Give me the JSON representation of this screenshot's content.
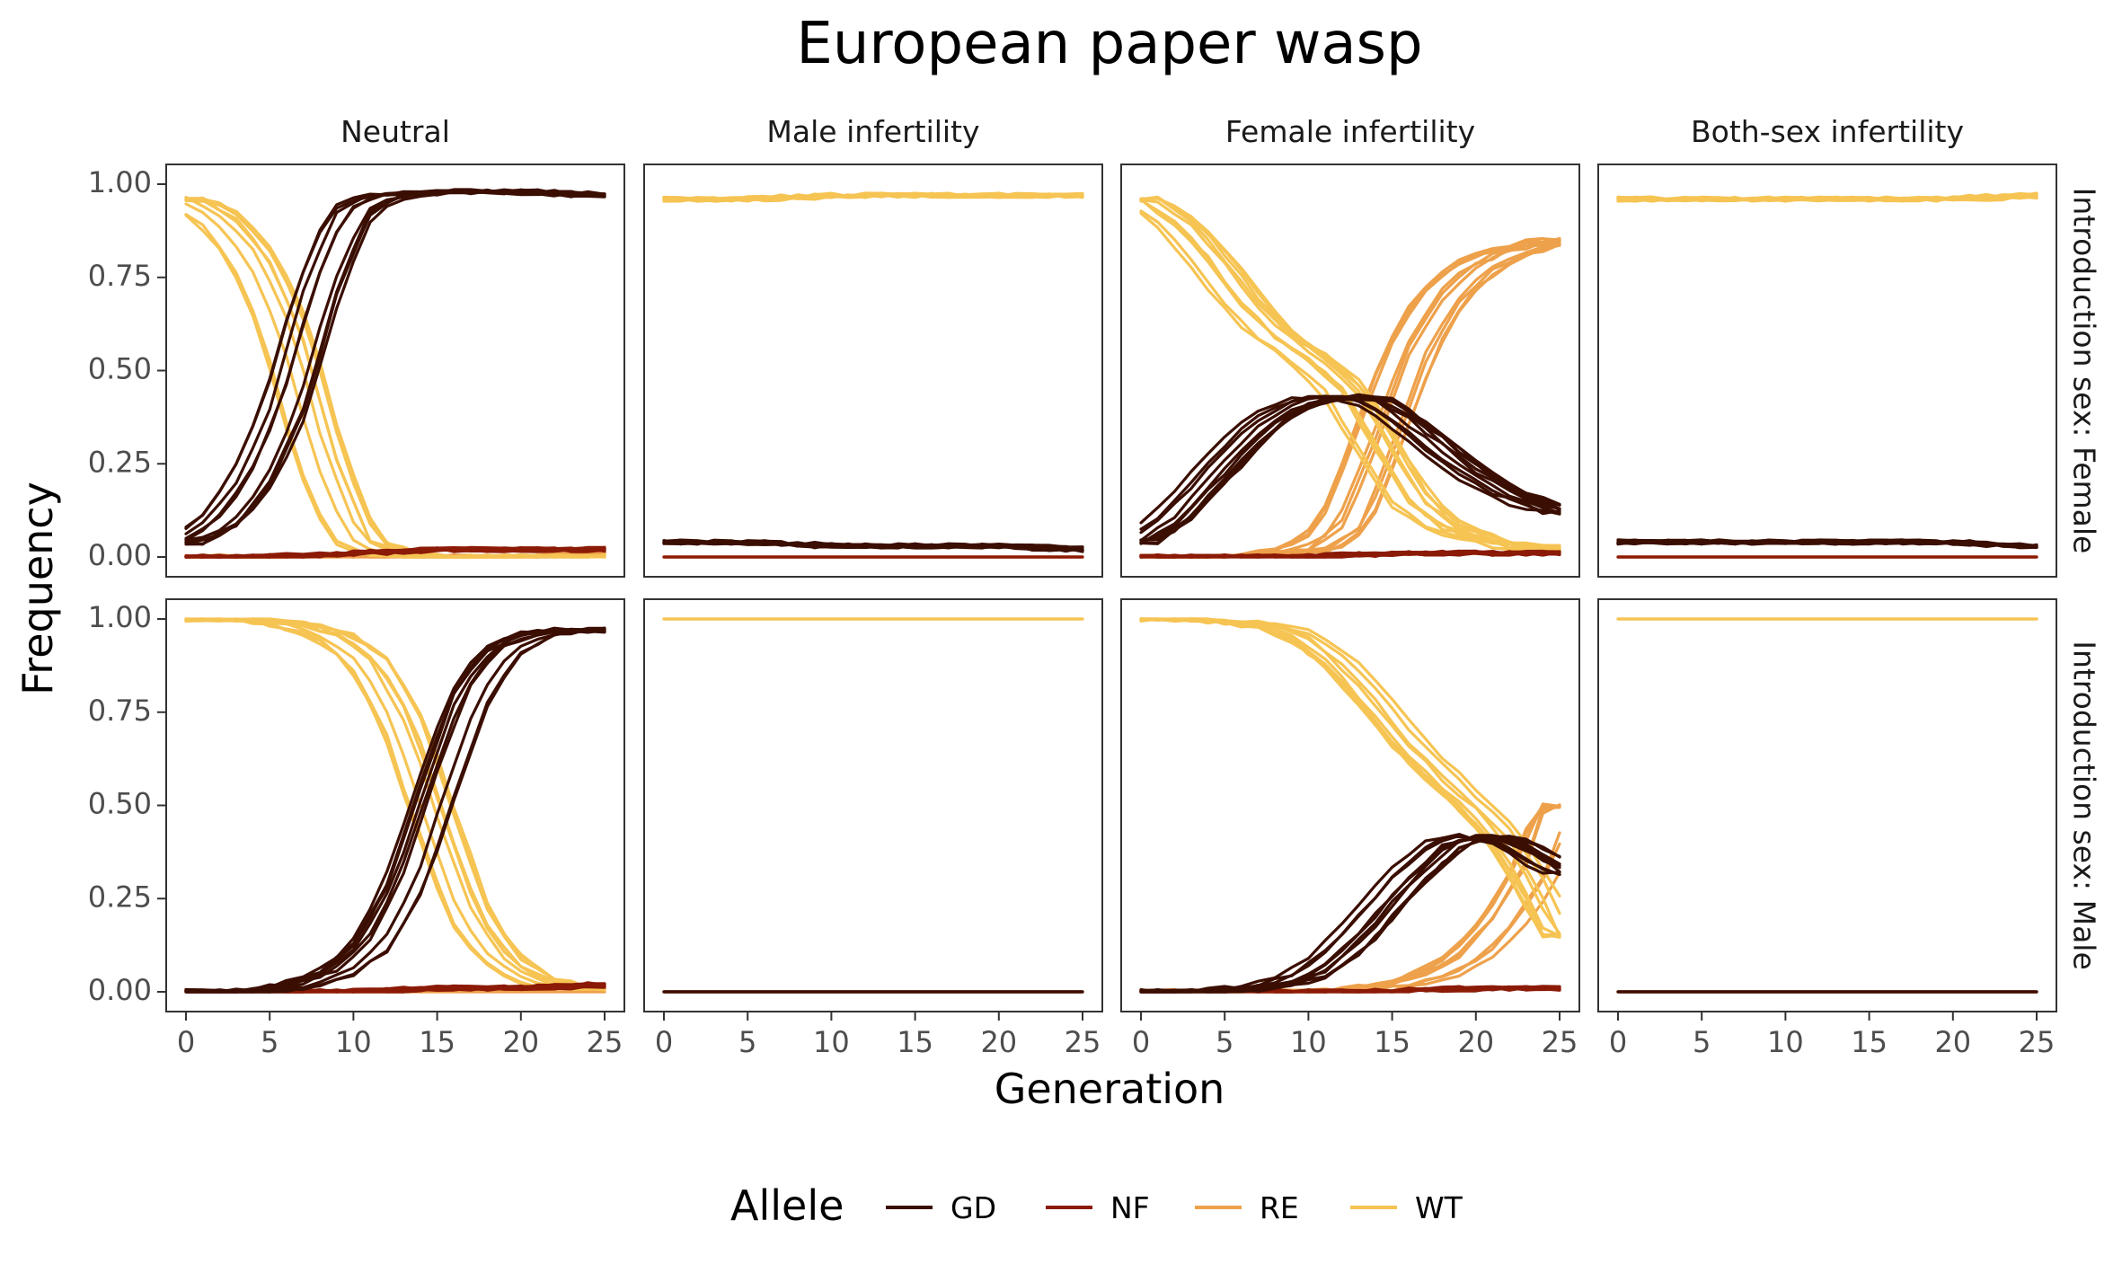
{
  "chart_data": {
    "type": "line",
    "title": "European paper wasp",
    "xlabel": "Generation",
    "ylabel": "Frequency",
    "xlim": [
      0,
      25
    ],
    "ylim": [
      0,
      1
    ],
    "x_ticks": [
      "0",
      "5",
      "10",
      "15",
      "20",
      "25"
    ],
    "y_ticks": [
      "0.00",
      "0.25",
      "0.50",
      "0.75",
      "1.00"
    ],
    "columns": [
      "Neutral",
      "Male infertility",
      "Female infertility",
      "Both-sex infertility"
    ],
    "rows": [
      "Introduction sex: Female",
      "Introduction sex: Male"
    ],
    "grid": false,
    "legend": {
      "title": "Allele",
      "position": "bottom",
      "entries": [
        {
          "key": "GD",
          "label": "GD",
          "color": "#3b0e02"
        },
        {
          "key": "NF",
          "label": "NF",
          "color": "#8b1a06"
        },
        {
          "key": "RE",
          "label": "RE",
          "color": "#eea14b"
        },
        {
          "key": "WT",
          "label": "WT",
          "color": "#f6c453"
        }
      ]
    },
    "replicates_per_allele": 10,
    "panels": [
      {
        "row": 0,
        "col": 0,
        "series": [
          {
            "allele": "GD",
            "x": [
              0,
              2,
              4,
              6,
              8,
              10,
              12,
              15,
              20,
              25
            ],
            "y": [
              0.04,
              0.09,
              0.2,
              0.4,
              0.72,
              0.93,
              0.97,
              0.98,
              0.98,
              0.97
            ]
          },
          {
            "allele": "WT",
            "x": [
              0,
              2,
              4,
              6,
              8,
              10,
              12,
              15,
              20,
              25
            ],
            "y": [
              0.96,
              0.91,
              0.8,
              0.6,
              0.27,
              0.05,
              0.01,
              0.0,
              0.0,
              0.0
            ]
          },
          {
            "allele": "NF",
            "x": [
              0,
              5,
              10,
              15,
              20,
              25
            ],
            "y": [
              0.0,
              0.0,
              0.01,
              0.02,
              0.02,
              0.02
            ]
          },
          {
            "allele": "RE",
            "x": [
              0,
              5,
              10,
              15,
              20,
              25
            ],
            "y": [
              0.0,
              0.0,
              0.0,
              0.0,
              0.0,
              0.01
            ]
          }
        ]
      },
      {
        "row": 0,
        "col": 1,
        "series": [
          {
            "allele": "WT",
            "x": [
              0,
              5,
              10,
              15,
              20,
              25
            ],
            "y": [
              0.96,
              0.96,
              0.97,
              0.97,
              0.97,
              0.97
            ]
          },
          {
            "allele": "GD",
            "x": [
              0,
              5,
              10,
              15,
              20,
              25
            ],
            "y": [
              0.04,
              0.04,
              0.03,
              0.03,
              0.03,
              0.02
            ]
          },
          {
            "allele": "NF",
            "x": [
              0,
              25
            ],
            "y": [
              0.0,
              0.0
            ]
          },
          {
            "allele": "RE",
            "x": [
              0,
              25
            ],
            "y": [
              0.0,
              0.0
            ]
          }
        ]
      },
      {
        "row": 0,
        "col": 2,
        "series": [
          {
            "allele": "GD",
            "x": [
              0,
              2,
              4,
              6,
              8,
              10,
              12,
              14,
              16,
              18,
              20,
              22,
              25
            ],
            "y": [
              0.04,
              0.1,
              0.2,
              0.3,
              0.38,
              0.42,
              0.43,
              0.42,
              0.36,
              0.29,
              0.22,
              0.17,
              0.12
            ]
          },
          {
            "allele": "WT",
            "x": [
              0,
              2,
              4,
              6,
              8,
              10,
              12,
              14,
              16,
              18,
              20,
              22,
              25
            ],
            "y": [
              0.96,
              0.9,
              0.8,
              0.68,
              0.59,
              0.53,
              0.45,
              0.3,
              0.15,
              0.08,
              0.05,
              0.03,
              0.02
            ]
          },
          {
            "allele": "RE",
            "x": [
              0,
              6,
              10,
              12,
              14,
              16,
              18,
              20,
              22,
              25
            ],
            "y": [
              0.0,
              0.0,
              0.02,
              0.08,
              0.3,
              0.55,
              0.7,
              0.78,
              0.82,
              0.85
            ]
          },
          {
            "allele": "NF",
            "x": [
              0,
              10,
              15,
              20,
              25
            ],
            "y": [
              0.0,
              0.0,
              0.01,
              0.01,
              0.01
            ]
          }
        ]
      },
      {
        "row": 0,
        "col": 3,
        "series": [
          {
            "allele": "WT",
            "x": [
              0,
              5,
              10,
              15,
              20,
              25
            ],
            "y": [
              0.96,
              0.96,
              0.96,
              0.96,
              0.96,
              0.97
            ]
          },
          {
            "allele": "GD",
            "x": [
              0,
              5,
              10,
              15,
              20,
              25
            ],
            "y": [
              0.04,
              0.04,
              0.04,
              0.04,
              0.04,
              0.03
            ]
          },
          {
            "allele": "NF",
            "x": [
              0,
              25
            ],
            "y": [
              0.0,
              0.0
            ]
          },
          {
            "allele": "RE",
            "x": [
              0,
              25
            ],
            "y": [
              0.0,
              0.0
            ]
          }
        ]
      },
      {
        "row": 1,
        "col": 0,
        "series": [
          {
            "allele": "GD",
            "x": [
              0,
              4,
              7,
              9,
              11,
              13,
              15,
              17,
              19,
              21,
              23,
              25
            ],
            "y": [
              0.0,
              0.0,
              0.02,
              0.05,
              0.12,
              0.28,
              0.55,
              0.8,
              0.92,
              0.96,
              0.97,
              0.97
            ]
          },
          {
            "allele": "WT",
            "x": [
              0,
              4,
              7,
              9,
              11,
              13,
              15,
              17,
              19,
              21,
              23,
              25
            ],
            "y": [
              1.0,
              1.0,
              0.98,
              0.95,
              0.88,
              0.72,
              0.45,
              0.2,
              0.08,
              0.03,
              0.01,
              0.01
            ]
          },
          {
            "allele": "NF",
            "x": [
              0,
              10,
              15,
              20,
              25
            ],
            "y": [
              0.0,
              0.0,
              0.01,
              0.01,
              0.02
            ]
          },
          {
            "allele": "RE",
            "x": [
              0,
              25
            ],
            "y": [
              0.0,
              0.0
            ]
          }
        ]
      },
      {
        "row": 1,
        "col": 1,
        "series": [
          {
            "allele": "WT",
            "x": [
              0,
              25
            ],
            "y": [
              1.0,
              1.0
            ]
          },
          {
            "allele": "GD",
            "x": [
              0,
              25
            ],
            "y": [
              0.0,
              0.0
            ]
          },
          {
            "allele": "NF",
            "x": [
              0,
              25
            ],
            "y": [
              0.0,
              0.0
            ]
          },
          {
            "allele": "RE",
            "x": [
              0,
              25
            ],
            "y": [
              0.0,
              0.0
            ]
          }
        ]
      },
      {
        "row": 1,
        "col": 2,
        "series": [
          {
            "allele": "GD",
            "x": [
              0,
              4,
              8,
              10,
              12,
              14,
              16,
              18,
              20,
              22,
              24,
              25
            ],
            "y": [
              0.0,
              0.0,
              0.02,
              0.05,
              0.12,
              0.22,
              0.32,
              0.4,
              0.42,
              0.4,
              0.35,
              0.32
            ]
          },
          {
            "allele": "WT",
            "x": [
              0,
              4,
              8,
              10,
              12,
              14,
              16,
              18,
              20,
              22,
              24,
              25
            ],
            "y": [
              1.0,
              1.0,
              0.98,
              0.95,
              0.88,
              0.78,
              0.67,
              0.58,
              0.5,
              0.4,
              0.25,
              0.15
            ]
          },
          {
            "allele": "RE",
            "x": [
              0,
              12,
              14,
              16,
              18,
              20,
              22,
              24,
              25
            ],
            "y": [
              0.0,
              0.0,
              0.01,
              0.02,
              0.05,
              0.1,
              0.2,
              0.35,
              0.5
            ]
          },
          {
            "allele": "NF",
            "x": [
              0,
              15,
              20,
              25
            ],
            "y": [
              0.0,
              0.0,
              0.01,
              0.01
            ]
          }
        ]
      },
      {
        "row": 1,
        "col": 3,
        "series": [
          {
            "allele": "WT",
            "x": [
              0,
              25
            ],
            "y": [
              1.0,
              1.0
            ]
          },
          {
            "allele": "GD",
            "x": [
              0,
              25
            ],
            "y": [
              0.0,
              0.0
            ]
          },
          {
            "allele": "NF",
            "x": [
              0,
              25
            ],
            "y": [
              0.0,
              0.0
            ]
          },
          {
            "allele": "RE",
            "x": [
              0,
              25
            ],
            "y": [
              0.0,
              0.0
            ]
          }
        ]
      }
    ]
  }
}
